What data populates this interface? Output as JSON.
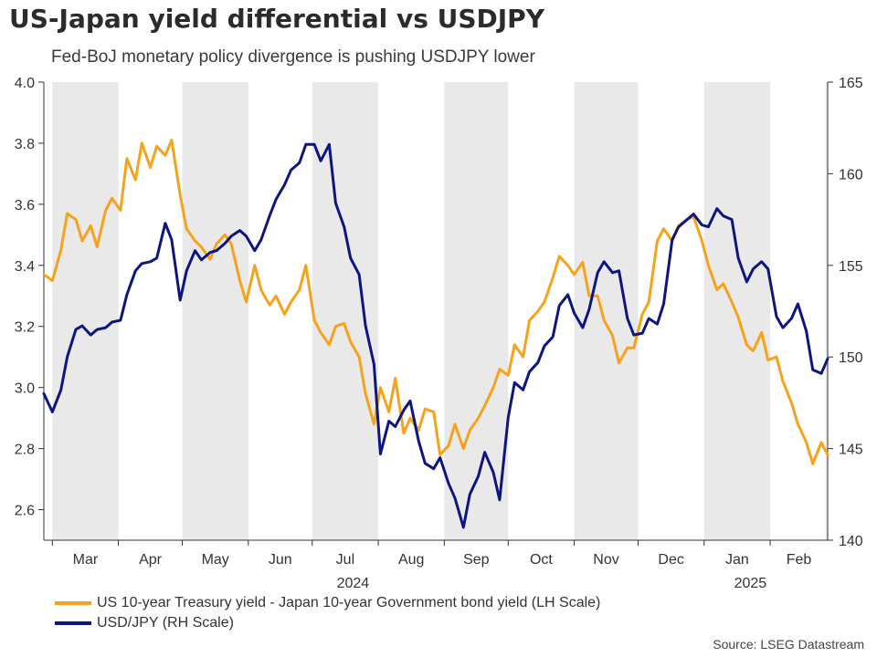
{
  "title": "US-Japan yield differential vs USDJPY",
  "subtitle": "Fed-BoJ monetary policy divergence is pushing USDJPY lower",
  "source": "Source: LSEG Datastream",
  "colors": {
    "spread": "#f7a21b",
    "usdjpy": "#0d1680",
    "shade": "#e9e9e9",
    "axis": "#333333"
  },
  "chart_data": {
    "type": "line",
    "x_labels": [
      "Mar",
      "Apr",
      "May",
      "Jun",
      "Jul",
      "Aug",
      "Sep",
      "Oct",
      "Nov",
      "Dec",
      "Jan",
      "Feb"
    ],
    "year_labels": [
      "2024",
      "2025"
    ],
    "x_range": [
      "2024-02-26",
      "2025-02-28"
    ],
    "y_left": {
      "range": [
        2.5,
        4.0
      ],
      "ticks": [
        2.6,
        2.8,
        3.0,
        3.2,
        3.4,
        3.6,
        3.8,
        4.0
      ],
      "tick_labels": [
        "2.6",
        "2.8",
        "3.0",
        "3.2",
        "3.4",
        "3.6",
        "3.8",
        "4.0"
      ]
    },
    "y_right": {
      "range": [
        140,
        165
      ],
      "ticks": [
        140,
        145,
        150,
        155,
        160,
        165
      ],
      "tick_labels": [
        "140",
        "145",
        "150",
        "155",
        "160",
        "165"
      ]
    },
    "series": [
      {
        "name": "US 10-year Treasury yield - Japan 10-year Government bond yield (LH Scale)",
        "axis": "left",
        "x": [
          "2024-02-26",
          "2024-03-01",
          "2024-03-05",
          "2024-03-08",
          "2024-03-12",
          "2024-03-15",
          "2024-03-19",
          "2024-03-22",
          "2024-03-26",
          "2024-03-29",
          "2024-04-02",
          "2024-04-05",
          "2024-04-09",
          "2024-04-12",
          "2024-04-16",
          "2024-04-19",
          "2024-04-23",
          "2024-04-26",
          "2024-04-30",
          "2024-05-03",
          "2024-05-07",
          "2024-05-10",
          "2024-05-14",
          "2024-05-17",
          "2024-05-21",
          "2024-05-24",
          "2024-05-28",
          "2024-05-31",
          "2024-06-04",
          "2024-06-07",
          "2024-06-11",
          "2024-06-14",
          "2024-06-18",
          "2024-06-21",
          "2024-06-25",
          "2024-06-28",
          "2024-07-02",
          "2024-07-05",
          "2024-07-09",
          "2024-07-12",
          "2024-07-16",
          "2024-07-19",
          "2024-07-23",
          "2024-07-26",
          "2024-07-30",
          "2024-08-02",
          "2024-08-06",
          "2024-08-09",
          "2024-08-13",
          "2024-08-16",
          "2024-08-20",
          "2024-08-23",
          "2024-08-27",
          "2024-08-30",
          "2024-09-03",
          "2024-09-06",
          "2024-09-10",
          "2024-09-13",
          "2024-09-17",
          "2024-09-20",
          "2024-09-24",
          "2024-09-27",
          "2024-10-01",
          "2024-10-04",
          "2024-10-08",
          "2024-10-11",
          "2024-10-15",
          "2024-10-18",
          "2024-10-22",
          "2024-10-25",
          "2024-10-29",
          "2024-11-01",
          "2024-11-05",
          "2024-11-08",
          "2024-11-12",
          "2024-11-15",
          "2024-11-19",
          "2024-11-22",
          "2024-11-26",
          "2024-11-29",
          "2024-12-03",
          "2024-12-06",
          "2024-12-10",
          "2024-12-13",
          "2024-12-17",
          "2024-12-20",
          "2024-12-24",
          "2024-12-27",
          "2024-12-31",
          "2025-01-03",
          "2025-01-07",
          "2025-01-10",
          "2025-01-14",
          "2025-01-17",
          "2025-01-21",
          "2025-01-24",
          "2025-01-28",
          "2025-01-31",
          "2025-02-04",
          "2025-02-07",
          "2025-02-11",
          "2025-02-14",
          "2025-02-18",
          "2025-02-21",
          "2025-02-25",
          "2025-02-28"
        ],
        "values": [
          3.37,
          3.35,
          3.45,
          3.57,
          3.55,
          3.48,
          3.53,
          3.46,
          3.58,
          3.62,
          3.58,
          3.75,
          3.68,
          3.8,
          3.72,
          3.79,
          3.76,
          3.81,
          3.63,
          3.52,
          3.48,
          3.46,
          3.42,
          3.47,
          3.5,
          3.47,
          3.35,
          3.28,
          3.4,
          3.32,
          3.27,
          3.3,
          3.24,
          3.28,
          3.32,
          3.4,
          3.22,
          3.18,
          3.14,
          3.2,
          3.21,
          3.15,
          3.1,
          2.98,
          2.88,
          3.0,
          2.92,
          3.03,
          2.85,
          2.9,
          2.86,
          2.93,
          2.92,
          2.78,
          2.81,
          2.88,
          2.8,
          2.86,
          2.9,
          2.94,
          3.0,
          3.06,
          3.04,
          3.14,
          3.1,
          3.22,
          3.25,
          3.28,
          3.36,
          3.43,
          3.4,
          3.37,
          3.41,
          3.3,
          3.3,
          3.22,
          3.17,
          3.08,
          3.13,
          3.13,
          3.24,
          3.28,
          3.48,
          3.52,
          3.48,
          3.53,
          3.55,
          3.56,
          3.48,
          3.4,
          3.32,
          3.34,
          3.28,
          3.23,
          3.14,
          3.12,
          3.18,
          3.09,
          3.1,
          3.02,
          2.95,
          2.88,
          2.82,
          2.75,
          2.82,
          2.78
        ]
      },
      {
        "name": "USD/JPY (RH Scale)",
        "axis": "right",
        "x": [
          "2024-02-26",
          "2024-03-01",
          "2024-03-05",
          "2024-03-08",
          "2024-03-12",
          "2024-03-15",
          "2024-03-19",
          "2024-03-22",
          "2024-03-26",
          "2024-03-29",
          "2024-04-02",
          "2024-04-05",
          "2024-04-09",
          "2024-04-12",
          "2024-04-16",
          "2024-04-19",
          "2024-04-23",
          "2024-04-26",
          "2024-04-30",
          "2024-05-03",
          "2024-05-07",
          "2024-05-10",
          "2024-05-14",
          "2024-05-17",
          "2024-05-21",
          "2024-05-24",
          "2024-05-28",
          "2024-05-31",
          "2024-06-04",
          "2024-06-07",
          "2024-06-11",
          "2024-06-14",
          "2024-06-18",
          "2024-06-21",
          "2024-06-25",
          "2024-06-28",
          "2024-07-02",
          "2024-07-05",
          "2024-07-09",
          "2024-07-12",
          "2024-07-16",
          "2024-07-19",
          "2024-07-23",
          "2024-07-26",
          "2024-07-30",
          "2024-08-02",
          "2024-08-06",
          "2024-08-09",
          "2024-08-13",
          "2024-08-16",
          "2024-08-20",
          "2024-08-23",
          "2024-08-27",
          "2024-08-30",
          "2024-09-03",
          "2024-09-06",
          "2024-09-10",
          "2024-09-13",
          "2024-09-17",
          "2024-09-20",
          "2024-09-24",
          "2024-09-27",
          "2024-10-01",
          "2024-10-04",
          "2024-10-08",
          "2024-10-11",
          "2024-10-15",
          "2024-10-18",
          "2024-10-22",
          "2024-10-25",
          "2024-10-29",
          "2024-11-01",
          "2024-11-05",
          "2024-11-08",
          "2024-11-12",
          "2024-11-15",
          "2024-11-19",
          "2024-11-22",
          "2024-11-26",
          "2024-11-29",
          "2024-12-03",
          "2024-12-06",
          "2024-12-10",
          "2024-12-13",
          "2024-12-17",
          "2024-12-20",
          "2024-12-24",
          "2024-12-27",
          "2024-12-31",
          "2025-01-03",
          "2025-01-07",
          "2025-01-10",
          "2025-01-14",
          "2025-01-17",
          "2025-01-21",
          "2025-01-24",
          "2025-01-28",
          "2025-01-31",
          "2025-02-04",
          "2025-02-07",
          "2025-02-11",
          "2025-02-14",
          "2025-02-18",
          "2025-02-21",
          "2025-02-25",
          "2025-02-28"
        ],
        "values": [
          148.0,
          147.0,
          148.2,
          150.0,
          151.5,
          151.7,
          151.2,
          151.5,
          151.6,
          151.9,
          152.0,
          153.4,
          154.7,
          155.1,
          155.2,
          155.4,
          157.3,
          156.4,
          153.1,
          154.7,
          155.8,
          155.3,
          155.7,
          155.8,
          156.2,
          156.6,
          156.9,
          156.6,
          155.8,
          156.4,
          157.7,
          158.6,
          159.4,
          160.2,
          160.6,
          161.6,
          161.6,
          160.7,
          161.6,
          158.4,
          157.1,
          155.4,
          154.5,
          151.7,
          149.6,
          144.7,
          146.5,
          146.2,
          147.1,
          147.6,
          145.4,
          144.2,
          143.9,
          144.5,
          143.1,
          142.3,
          140.7,
          142.5,
          143.5,
          144.8,
          143.7,
          142.2,
          146.7,
          148.6,
          148.2,
          149.2,
          149.7,
          150.6,
          151.1,
          152.8,
          153.4,
          152.4,
          151.6,
          152.6,
          154.6,
          155.2,
          154.6,
          154.7,
          152.1,
          151.2,
          151.3,
          152.1,
          151.8,
          152.9,
          156.4,
          157.1,
          157.5,
          157.8,
          157.2,
          157.1,
          158.1,
          157.7,
          157.5,
          155.4,
          154.1,
          154.8,
          155.2,
          154.8,
          152.2,
          151.6,
          152.1,
          152.9,
          151.4,
          149.3,
          149.1,
          149.9
        ]
      }
    ],
    "xlabel": "",
    "ylabel": "",
    "grid": false,
    "legend": "bottom-left",
    "shaded_months": [
      "2024-03",
      "2024-05",
      "2024-07",
      "2024-09",
      "2024-11",
      "2025-01"
    ]
  },
  "legend": {
    "items": [
      {
        "label": "US 10-year Treasury yield - Japan 10-year Government bond yield (LH Scale)",
        "color": "#f7a21b"
      },
      {
        "label": "USD/JPY (RH Scale)",
        "color": "#0d1680"
      }
    ]
  }
}
